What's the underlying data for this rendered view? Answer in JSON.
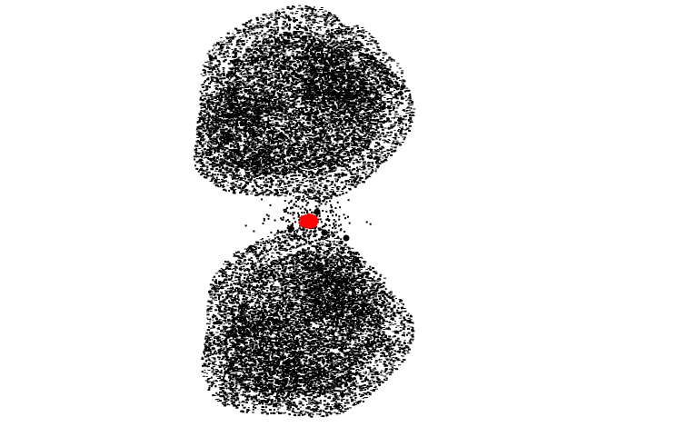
{
  "figure": {
    "description_type": "particle cluster plot",
    "background_color": "#ffffff",
    "colors": {
      "cluster_particles": "#000000",
      "bridge_particles": "#ff0000"
    },
    "clusters": [
      {
        "name": "upper-cluster",
        "shape": "dense irregular blob"
      },
      {
        "name": "lower-cluster",
        "shape": "dense irregular blob"
      }
    ],
    "bridge": {
      "name": "red-bridge-cluster",
      "shape": "small red patch between clusters"
    }
  }
}
